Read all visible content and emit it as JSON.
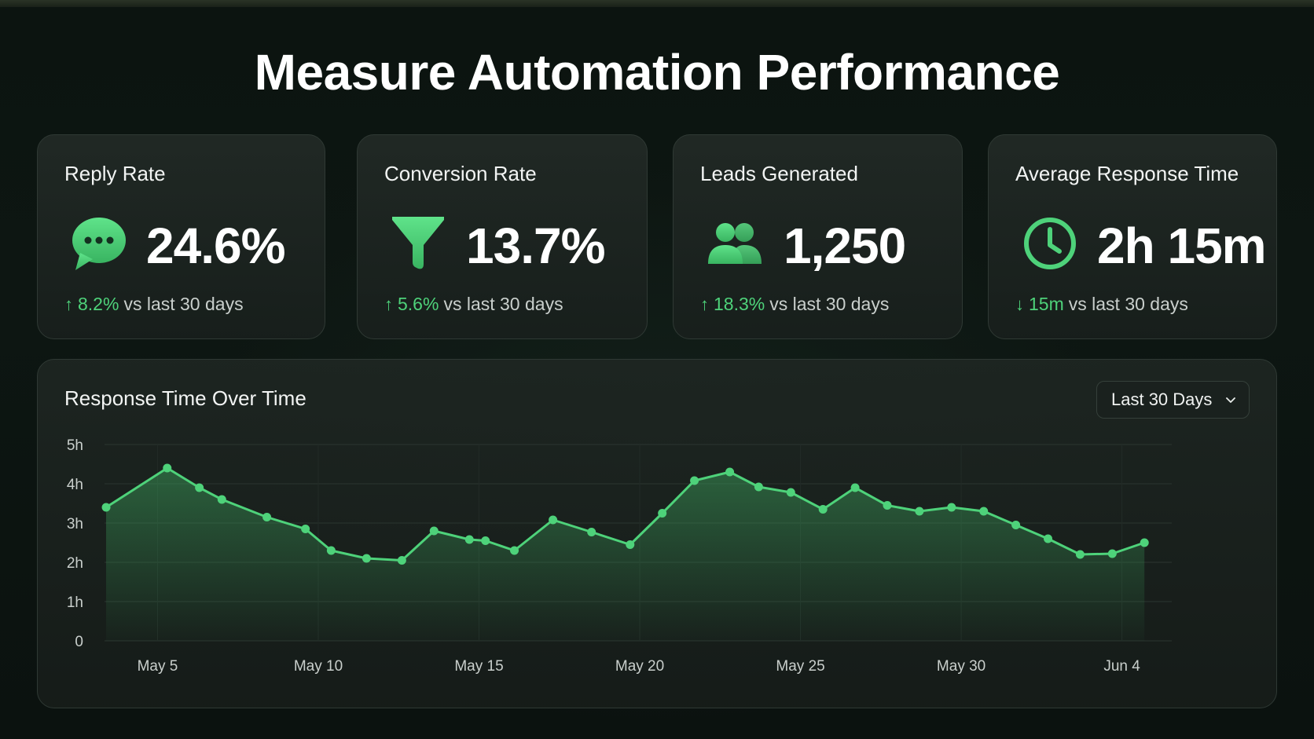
{
  "page": {
    "title": "Measure Automation Performance"
  },
  "colors": {
    "accent": "#4ed27a",
    "background": "#0d1612",
    "card": "#1e2622"
  },
  "metrics": [
    {
      "label": "Reply Rate",
      "value": "24.6%",
      "icon": "chat-bubble-icon",
      "direction": "up",
      "delta": "8.2%",
      "comparison": "vs last 30 days"
    },
    {
      "label": "Conversion Rate",
      "value": "13.7%",
      "icon": "funnel-icon",
      "direction": "up",
      "delta": "5.6%",
      "comparison": "vs last 30 days"
    },
    {
      "label": "Leads Generated",
      "value": "1,250",
      "icon": "users-icon",
      "direction": "up",
      "delta": "18.3%",
      "comparison": "vs last 30 days"
    },
    {
      "label": "Average Response Time",
      "value": "2h 15m",
      "icon": "clock-icon",
      "direction": "down",
      "delta": "15m",
      "comparison": "vs last 30 days"
    }
  ],
  "arrows": {
    "up": "↑",
    "down": "↓"
  },
  "chart_panel": {
    "title": "Response Time Over Time",
    "range_label": "Last 30 Days"
  },
  "chart_data": {
    "type": "area",
    "title": "Response Time Over Time",
    "xlabel": "",
    "ylabel": "",
    "ylim": [
      0,
      5
    ],
    "y_ticks": [
      0,
      1,
      2,
      3,
      4,
      5
    ],
    "y_tick_labels": [
      "0",
      "1h",
      "2h",
      "3h",
      "4h",
      "5h"
    ],
    "x_tick_labels": [
      "May 5",
      "May 10",
      "May 15",
      "May 20",
      "May 25",
      "May 30",
      "Jun 4"
    ],
    "x_tick_days": [
      5,
      10,
      15,
      20,
      25,
      30,
      35
    ],
    "xlim": [
      3.35,
      36.55
    ],
    "grid": true,
    "series": [
      {
        "x": [
          3.4,
          5.3,
          6.3,
          7.0,
          8.4,
          9.6,
          10.4,
          11.5,
          12.6,
          13.6,
          14.7,
          15.2,
          16.1,
          17.3,
          18.5,
          19.7,
          20.7,
          21.7,
          22.8,
          23.7,
          24.7,
          25.7,
          26.7,
          27.7,
          28.7,
          29.7,
          30.7,
          31.7,
          32.7,
          33.7,
          34.7,
          35.7
        ],
        "y": [
          3.4,
          4.4,
          3.9,
          3.6,
          3.15,
          2.85,
          2.3,
          2.1,
          2.05,
          2.8,
          2.58,
          2.55,
          2.3,
          3.08,
          2.77,
          2.45,
          3.25,
          4.08,
          4.3,
          3.92,
          3.78,
          3.35,
          3.9,
          3.45,
          3.3,
          3.4,
          3.3,
          2.95,
          2.6,
          2.2,
          2.22,
          2.5
        ]
      }
    ]
  }
}
